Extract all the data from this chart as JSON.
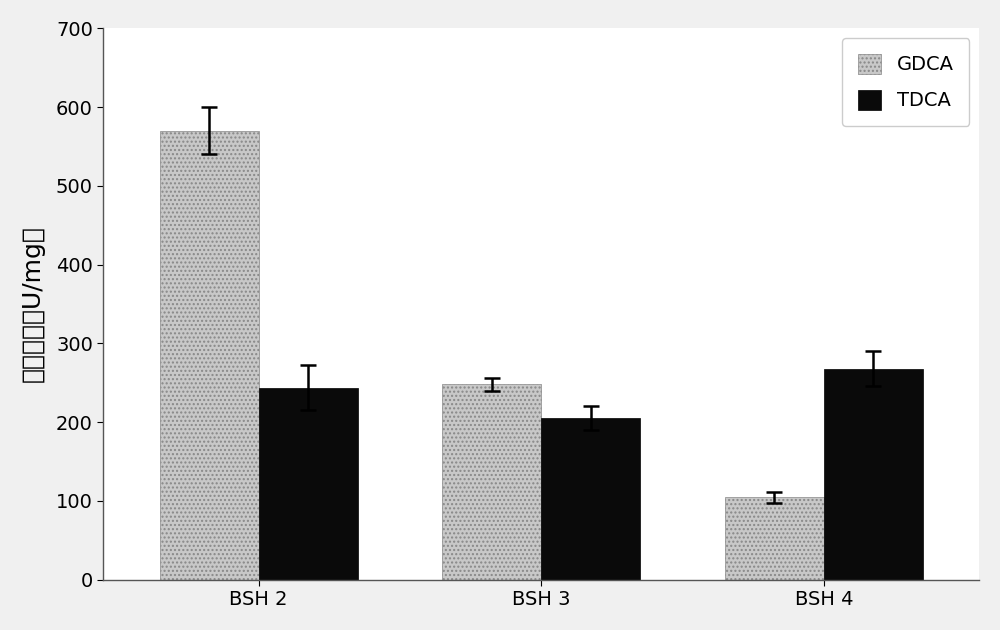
{
  "categories": [
    "BSH 2",
    "BSH 3",
    "BSH 4"
  ],
  "gdca_values": [
    570,
    248,
    105
  ],
  "tdca_values": [
    244,
    205,
    268
  ],
  "gdca_errors": [
    30,
    8,
    7
  ],
  "tdca_errors": [
    28,
    15,
    22
  ],
  "gdca_color": "#c8c8c8",
  "tdca_color": "#0a0a0a",
  "ylabel": "相对活力（U/mg）",
  "ylim": [
    0,
    700
  ],
  "yticks": [
    0,
    100,
    200,
    300,
    400,
    500,
    600,
    700
  ],
  "legend_gdca": "GDCA",
  "legend_tdca": "TDCA",
  "bar_width": 0.35,
  "figsize": [
    10.0,
    6.3
  ],
  "dpi": 100,
  "background_color": "#f0f0f0",
  "plot_bg_color": "#ffffff",
  "tick_labelsize": 14,
  "ylabel_fontsize": 18,
  "legend_fontsize": 14
}
